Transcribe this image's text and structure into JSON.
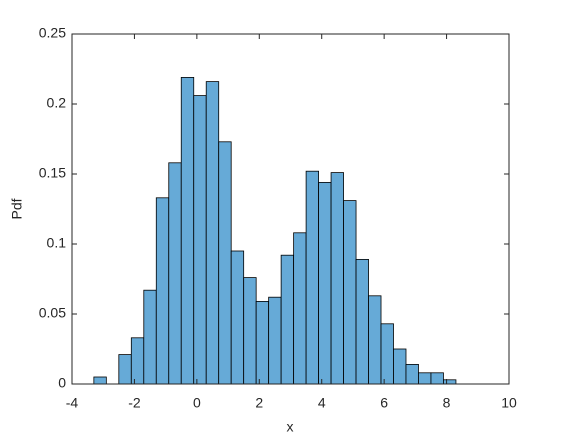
{
  "chart_data": {
    "type": "histogram",
    "xlabel": "x",
    "ylabel": "Pdf",
    "bins": [
      -3.3,
      -2.9,
      -2.5,
      -2.1,
      -1.7,
      -1.3,
      -0.9,
      -0.5,
      -0.1,
      0.3,
      0.7,
      1.1,
      1.5,
      1.9,
      2.3,
      2.7,
      3.1,
      3.5,
      3.9,
      4.3,
      4.7,
      5.1,
      5.5,
      5.9,
      6.3,
      6.7,
      7.1,
      7.5,
      7.9,
      8.3
    ],
    "values": [
      0.005,
      0,
      0.021,
      0.033,
      0.067,
      0.133,
      0.158,
      0.219,
      0.206,
      0.216,
      0.173,
      0.095,
      0.076,
      0.059,
      0.062,
      0.092,
      0.108,
      0.152,
      0.144,
      0.151,
      0.131,
      0.089,
      0.063,
      0.043,
      0.025,
      0.014,
      0.008,
      0.008,
      0.003
    ],
    "color": "#66aad7",
    "xlim": [
      -4,
      10
    ],
    "xticks": [
      -4,
      -2,
      0,
      2,
      4,
      6,
      8,
      10
    ],
    "ylim": [
      0,
      0.25
    ],
    "yticks": [
      0,
      0.05,
      0.1,
      0.15,
      0.2,
      0.25
    ],
    "grid": false
  }
}
